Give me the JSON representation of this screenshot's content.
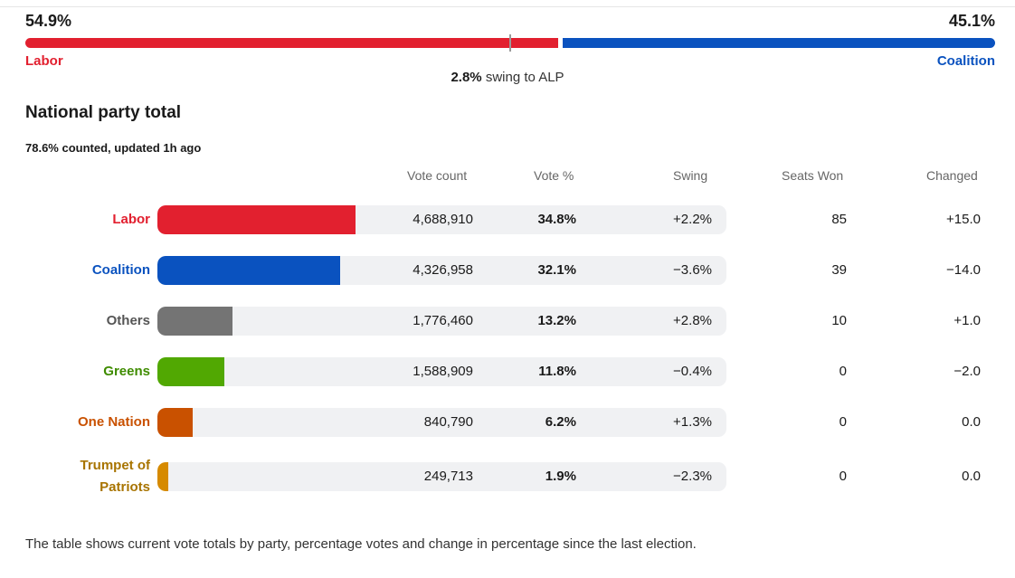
{
  "tpp": {
    "left_pct": "54.9%",
    "right_pct": "45.1%",
    "left_share": 54.9,
    "left_label": "Labor",
    "right_label": "Coalition",
    "left_color": "#e2202f",
    "right_color": "#0a52bf",
    "swing_value": "2.8%",
    "swing_text": "swing to ALP"
  },
  "section": {
    "title": "National party total",
    "counted": "78.6% counted, updated 1h ago"
  },
  "footnote": "The table shows current vote totals by party, percentage votes and change in percentage since the last election.",
  "chart_data": {
    "type": "table",
    "columns": [
      "Vote count",
      "Vote %",
      "Swing",
      "Seats Won",
      "Changed"
    ],
    "rows": [
      {
        "party": "Labor",
        "party_lines": [
          "Labor"
        ],
        "color": "#e2202f",
        "vote_count": "4,688,910",
        "vote_pct": "34.8%",
        "vote_pct_value": 34.8,
        "swing": "+2.2%",
        "seats_won": "85",
        "changed": "+15.0"
      },
      {
        "party": "Coalition",
        "party_lines": [
          "Coalition"
        ],
        "color": "#0a52bf",
        "vote_count": "4,326,958",
        "vote_pct": "32.1%",
        "vote_pct_value": 32.1,
        "swing": "−3.6%",
        "seats_won": "39",
        "changed": "−14.0"
      },
      {
        "party": "Others",
        "party_lines": [
          "Others"
        ],
        "color": "#747474",
        "vote_count": "1,776,460",
        "vote_pct": "13.2%",
        "vote_pct_value": 13.2,
        "swing": "+2.8%",
        "seats_won": "10",
        "changed": "+1.0"
      },
      {
        "party": "Greens",
        "party_lines": [
          "Greens"
        ],
        "color": "#51a802",
        "vote_count": "1,588,909",
        "vote_pct": "11.8%",
        "vote_pct_value": 11.8,
        "swing": "−0.4%",
        "seats_won": "0",
        "changed": "−2.0"
      },
      {
        "party": "One Nation",
        "party_lines": [
          "One Nation"
        ],
        "color": "#c95100",
        "vote_count": "840,790",
        "vote_pct": "6.2%",
        "vote_pct_value": 6.2,
        "swing": "+1.3%",
        "seats_won": "0",
        "changed": "0.0"
      },
      {
        "party": "Trumpet of Patriots",
        "party_lines": [
          "Trumpet of",
          "Patriots"
        ],
        "color": "#d68a00",
        "vote_count": "249,713",
        "vote_pct": "1.9%",
        "vote_pct_value": 1.9,
        "swing": "−2.3%",
        "seats_won": "0",
        "changed": "0.0"
      }
    ],
    "label_colors": {
      "Labor": "#e2202f",
      "Coalition": "#0a52bf",
      "Others": "#555555",
      "Greens": "#3f8c00",
      "One Nation": "#c95100",
      "Trumpet of Patriots": "#a87400"
    }
  }
}
